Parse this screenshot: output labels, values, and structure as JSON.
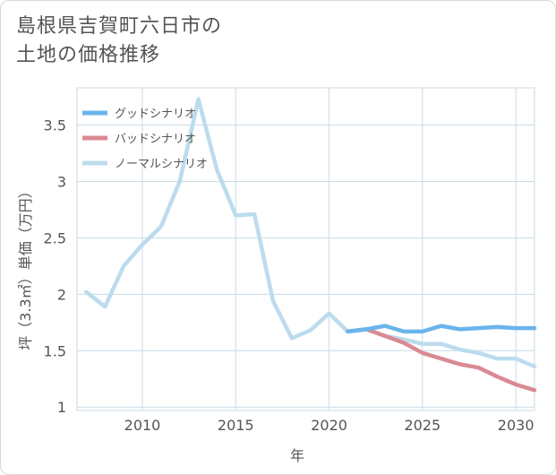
{
  "title_lines": [
    "島根県吉賀町六日市の",
    "土地の価格推移"
  ],
  "chart_data": {
    "type": "line",
    "title": "島根県吉賀町六日市の土地の価格推移",
    "xlabel": "年",
    "ylabel": "坪（3.3㎡）単価（万円）",
    "xlim": [
      2006.5,
      2031
    ],
    "ylim": [
      0.97,
      3.83
    ],
    "xticks": [
      2010,
      2015,
      2020,
      2025,
      2030
    ],
    "yticks": [
      1,
      1.5,
      2,
      2.5,
      3,
      3.5
    ],
    "grid": true,
    "legend_position": "top-left",
    "series": [
      {
        "name": "グッドシナリオ",
        "color": "#6ab4ec",
        "x": [
          2021,
          2022,
          2023,
          2024,
          2025,
          2026,
          2027,
          2028,
          2029,
          2030,
          2031
        ],
        "y": [
          1.67,
          1.69,
          1.72,
          1.67,
          1.67,
          1.72,
          1.69,
          1.7,
          1.71,
          1.7,
          1.7
        ]
      },
      {
        "name": "バッドシナリオ",
        "color": "#da8a93",
        "x": [
          2021,
          2022,
          2023,
          2024,
          2025,
          2026,
          2027,
          2028,
          2029,
          2030,
          2031
        ],
        "y": [
          1.67,
          1.69,
          1.63,
          1.57,
          1.48,
          1.43,
          1.38,
          1.35,
          1.27,
          1.2,
          1.15
        ]
      },
      {
        "name": "ノーマルシナリオ",
        "color": "#bcdcee",
        "x": [
          2007,
          2008,
          2009,
          2010,
          2011,
          2012,
          2013,
          2014,
          2015,
          2016,
          2017,
          2018,
          2019,
          2020,
          2021,
          2022,
          2023,
          2024,
          2025,
          2026,
          2027,
          2028,
          2029,
          2030,
          2031
        ],
        "y": [
          2.02,
          1.89,
          2.25,
          2.44,
          2.6,
          3.0,
          3.73,
          3.1,
          2.7,
          2.71,
          1.94,
          1.61,
          1.68,
          1.83,
          1.67,
          1.69,
          1.63,
          1.6,
          1.56,
          1.56,
          1.51,
          1.48,
          1.43,
          1.43,
          1.36
        ]
      }
    ]
  }
}
